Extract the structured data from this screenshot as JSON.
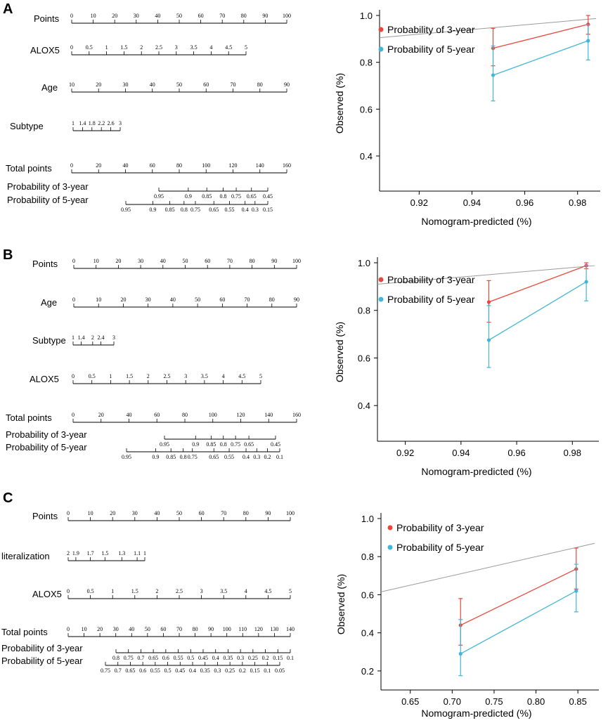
{
  "panels": [
    {
      "letter": "A",
      "nomogram": {
        "rows": [
          {
            "label": "Points",
            "ticks": [
              "0",
              "10",
              "20",
              "30",
              "40",
              "50",
              "60",
              "70",
              "80",
              "90",
              "100"
            ]
          },
          {
            "label": "ALOX5",
            "ticks": [
              "0",
              "0.5",
              "1",
              "1.5",
              "2",
              "2.5",
              "3",
              "3.5",
              "4",
              "4.5",
              "5"
            ]
          },
          {
            "label": "Age",
            "ticks": [
              "10",
              "20",
              "30",
              "40",
              "50",
              "60",
              "70",
              "80",
              "90"
            ]
          },
          {
            "label": "Subtype",
            "ticks": [
              "1",
              "1.4",
              "1.8",
              "2.2",
              "2.6",
              "3"
            ]
          },
          {
            "label": "Total points",
            "ticks": [
              "0",
              "20",
              "40",
              "60",
              "80",
              "100",
              "120",
              "140",
              "160"
            ]
          },
          {
            "label": "Probability of 3-year",
            "ticks": [
              "0.95",
              "0.9",
              "0.85",
              "0.8",
              "0.75",
              "0.65",
              "0.45"
            ]
          },
          {
            "label": "Probability of 5-year",
            "ticks": [
              "0.95",
              "0.9",
              "0.85",
              "0.8",
              "0.75",
              "0.65",
              "0.55",
              "0.4",
              "0.3",
              "0.15"
            ]
          }
        ]
      },
      "chart_data": {
        "type": "line",
        "xlabel": "Nomogram-predicted (%)",
        "ylabel": "Observed (%)",
        "xlim": [
          0.905,
          0.987
        ],
        "ylim": [
          0.25,
          1.0
        ],
        "xticks": [
          "0.92",
          "0.94",
          "0.96",
          "0.98"
        ],
        "yticks": [
          "0.4",
          "0.6",
          "0.8",
          "1.0"
        ],
        "legend_position": "top-left",
        "series": [
          {
            "name": "Probability of 3-year",
            "color": "#e8483b",
            "x": [
              0.948,
              0.984
            ],
            "y": [
              0.86,
              0.962
            ],
            "err_low": [
              0.785,
              0.92
            ],
            "err_high": [
              0.945,
              1.0
            ]
          },
          {
            "name": "Probability of 5-year",
            "color": "#41b6d6",
            "x": [
              0.948,
              0.984
            ],
            "y": [
              0.745,
              0.892
            ],
            "err_low": [
              0.635,
              0.81
            ],
            "err_high": [
              0.87,
              0.96
            ]
          }
        ]
      }
    },
    {
      "letter": "B",
      "nomogram": {
        "rows": [
          {
            "label": "Points",
            "ticks": [
              "0",
              "10",
              "20",
              "30",
              "40",
              "50",
              "60",
              "70",
              "80",
              "90",
              "100"
            ]
          },
          {
            "label": "Age",
            "ticks": [
              "0",
              "10",
              "20",
              "30",
              "40",
              "50",
              "60",
              "70",
              "80",
              "90"
            ]
          },
          {
            "label": "Subtype",
            "ticks": [
              "1",
              "1.4",
              "2",
              "2.4",
              "3"
            ]
          },
          {
            "label": "ALOX5",
            "ticks": [
              "0",
              "0.5",
              "1",
              "1.5",
              "2",
              "2.5",
              "3",
              "3.5",
              "4",
              "4.5",
              "5"
            ]
          },
          {
            "label": "Total points",
            "ticks": [
              "0",
              "20",
              "40",
              "60",
              "80",
              "100",
              "120",
              "140",
              "160"
            ]
          },
          {
            "label": "Probability of 3-year",
            "ticks": [
              "0.95",
              "0.9",
              "0.85",
              "0.8",
              "0.75",
              "0.65",
              "0.45"
            ]
          },
          {
            "label": "Probability of 5-year",
            "ticks": [
              "0.95",
              "0.9",
              "0.85",
              "0.8",
              "0.75",
              "0.65",
              "0.55",
              "0.4",
              "0.3",
              "0.2",
              "0.1"
            ]
          }
        ]
      },
      "chart_data": {
        "type": "line",
        "xlabel": "Nomogram-predicted (%)",
        "ylabel": "Observed (%)",
        "xlim": [
          0.91,
          0.988
        ],
        "ylim": [
          0.25,
          1.0
        ],
        "xticks": [
          "0.92",
          "0.94",
          "0.96",
          "0.98"
        ],
        "yticks": [
          "0.4",
          "0.6",
          "0.8",
          "1.0"
        ],
        "legend_position": "top-left",
        "series": [
          {
            "name": "Probability of 3-year",
            "color": "#e8483b",
            "x": [
              0.95,
              0.985
            ],
            "y": [
              0.835,
              0.988
            ],
            "err_low": [
              0.75,
              0.975
            ],
            "err_high": [
              0.925,
              1.0
            ]
          },
          {
            "name": "Probability of 5-year",
            "color": "#41b6d6",
            "x": [
              0.95,
              0.985
            ],
            "y": [
              0.675,
              0.92
            ],
            "err_low": [
              0.56,
              0.84
            ],
            "err_high": [
              0.82,
              0.99
            ]
          }
        ]
      }
    },
    {
      "letter": "C",
      "nomogram": {
        "rows": [
          {
            "label": "Points",
            "ticks": [
              "0",
              "10",
              "20",
              "30",
              "40",
              "50",
              "60",
              "70",
              "80",
              "90",
              "100"
            ]
          },
          {
            "label": "literalization",
            "ticks": [
              "2",
              "1.9",
              "1.7",
              "1.5",
              "1.3",
              "1.1",
              "1"
            ]
          },
          {
            "label": "ALOX5",
            "ticks": [
              "0",
              "0.5",
              "1",
              "1.5",
              "2",
              "2.5",
              "3",
              "3.5",
              "4",
              "4.5",
              "5"
            ]
          },
          {
            "label": "Total points",
            "ticks": [
              "0",
              "10",
              "20",
              "30",
              "40",
              "50",
              "60",
              "70",
              "80",
              "90",
              "100",
              "110",
              "120",
              "130",
              "140"
            ]
          },
          {
            "label": "Probability of 3-year",
            "ticks": [
              "0.8",
              "0.75",
              "0.7",
              "0.65",
              "0.6",
              "0.55",
              "0.5",
              "0.45",
              "0.4",
              "0.35",
              "0.3",
              "0.25",
              "0.2",
              "0.15",
              "0.1"
            ]
          },
          {
            "label": "Probability of 5-year",
            "ticks": [
              "0.75",
              "0.7",
              "0.65",
              "0.6",
              "0.55",
              "0.5",
              "0.45",
              "0.4",
              "0.35",
              "0.3",
              "0.25",
              "0.2",
              "0.15",
              "0.1",
              "0.05"
            ]
          }
        ]
      },
      "chart_data": {
        "type": "line",
        "xlabel": "Nomogram-predicted (%)",
        "ylabel": "Observed (%)",
        "xlim": [
          0.615,
          0.87
        ],
        "ylim": [
          0.1,
          1.0
        ],
        "xticks": [
          "0.65",
          "0.70",
          "0.75",
          "0.80",
          "0.85"
        ],
        "yticks": [
          "0.2",
          "0.4",
          "0.6",
          "0.8",
          "1.0"
        ],
        "legend_position": "top-left",
        "series": [
          {
            "name": "Probability of 3-year",
            "color": "#e8483b",
            "x": [
              0.71,
              0.848
            ],
            "y": [
              0.44,
              0.735
            ],
            "err_low": [
              0.335,
              0.63
            ],
            "err_high": [
              0.58,
              0.845
            ]
          },
          {
            "name": "Probability of 5-year",
            "color": "#41b6d6",
            "x": [
              0.71,
              0.848
            ],
            "y": [
              0.29,
              0.62
            ],
            "err_low": [
              0.175,
              0.51
            ],
            "err_high": [
              0.47,
              0.76
            ]
          }
        ]
      }
    }
  ]
}
